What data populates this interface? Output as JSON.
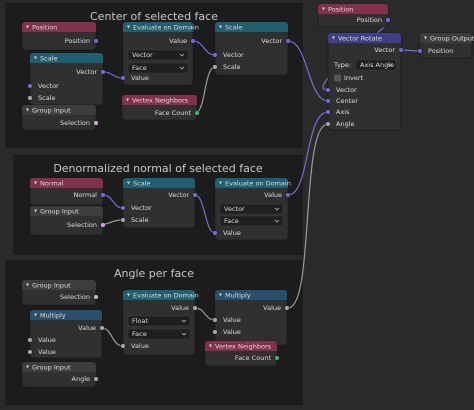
{
  "frames": [
    {
      "title": "Center of selected face"
    },
    {
      "title": "Denormalized normal of selected face"
    },
    {
      "title": "Angle per face"
    }
  ],
  "nodes": [
    {
      "title": "Position",
      "rows": [
        "Position"
      ]
    },
    {
      "title": "Evaluate on Domain",
      "rows": [
        "Value",
        "Vector",
        "Face",
        "Value"
      ]
    },
    {
      "title": "Scale",
      "rows": [
        "Vector",
        "Vector",
        "Scale"
      ]
    },
    {
      "title": "Scale",
      "rows": [
        "Vector",
        "Vector",
        "Scale"
      ]
    },
    {
      "title": "Group Input",
      "rows": [
        "Selection"
      ]
    },
    {
      "title": "Vertex Neighbors",
      "rows": [
        "Face Count"
      ]
    },
    {
      "title": "Position",
      "rows": [
        "Position"
      ]
    },
    {
      "title": "Vector Rotate",
      "rows": [
        "Vector",
        "Type:",
        "Axis Angle",
        "Invert",
        "Vector",
        "Center",
        "Axis",
        "Angle"
      ]
    },
    {
      "title": "Group Output",
      "rows": [
        "Position"
      ]
    },
    {
      "title": "Normal",
      "rows": [
        "Normal"
      ]
    },
    {
      "title": "Group Input",
      "rows": [
        "Selection"
      ]
    },
    {
      "title": "Scale",
      "rows": [
        "Vector",
        "Vector",
        "Scale"
      ]
    },
    {
      "title": "Evaluate on Domain",
      "rows": [
        "Value",
        "Vector",
        "Face",
        "Value"
      ]
    },
    {
      "title": "Group Input",
      "rows": [
        "Selection"
      ]
    },
    {
      "title": "Multiply",
      "rows": [
        "Value",
        "Value",
        "Value"
      ]
    },
    {
      "title": "Group Input",
      "rows": [
        "Angle"
      ]
    },
    {
      "title": "Evaluate on Domain",
      "rows": [
        "Value",
        "Float",
        "Face",
        "Value"
      ]
    },
    {
      "title": "Multiply",
      "rows": [
        "Value",
        "Value",
        "Value"
      ]
    },
    {
      "title": "Vertex Neighbors",
      "rows": [
        "Face Count"
      ]
    }
  ]
}
